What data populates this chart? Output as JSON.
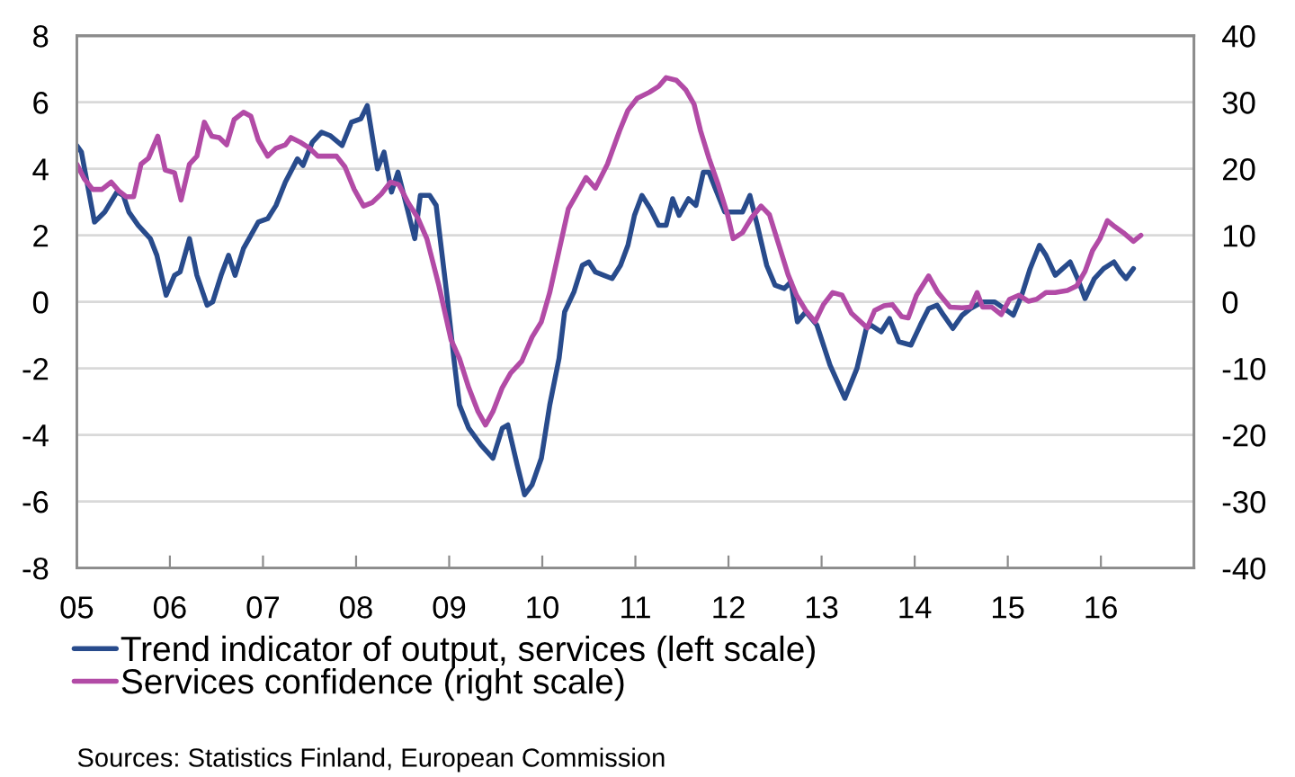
{
  "chart_data": {
    "type": "line",
    "xlim": [
      2005,
      2017
    ],
    "xticks": [
      {
        "value": 2005,
        "label": "05"
      },
      {
        "value": 2006,
        "label": "06"
      },
      {
        "value": 2007,
        "label": "07"
      },
      {
        "value": 2008,
        "label": "08"
      },
      {
        "value": 2009,
        "label": "09"
      },
      {
        "value": 2010,
        "label": "10"
      },
      {
        "value": 2011,
        "label": "11"
      },
      {
        "value": 2012,
        "label": "12"
      },
      {
        "value": 2013,
        "label": "13"
      },
      {
        "value": 2014,
        "label": "14"
      },
      {
        "value": 2015,
        "label": "15"
      },
      {
        "value": 2016,
        "label": "16"
      }
    ],
    "ylim": [
      -8,
      8
    ],
    "yticks": [
      -8,
      -6,
      -4,
      -2,
      0,
      2,
      4,
      6,
      8
    ],
    "y2lim": [
      -40,
      40
    ],
    "y2ticks": [
      -40,
      -30,
      -20,
      -10,
      0,
      10,
      20,
      30,
      40
    ],
    "grid": "y",
    "legend": "bottom left",
    "series": [
      {
        "name": "Trend indicator of output, services (left scale)",
        "color": "#284b8c",
        "axis": "y",
        "x": [
          2005.0,
          2005.05,
          2005.19,
          2005.3,
          2005.43,
          2005.5,
          2005.56,
          2005.66,
          2005.79,
          2005.86,
          2005.96,
          2006.05,
          2006.11,
          2006.21,
          2006.29,
          2006.4,
          2006.46,
          2006.55,
          2006.63,
          2006.7,
          2006.79,
          2006.85,
          2006.95,
          2007.05,
          2007.14,
          2007.24,
          2007.37,
          2007.43,
          2007.53,
          2007.63,
          2007.72,
          2007.85,
          2007.95,
          2008.05,
          2008.12,
          2008.23,
          2008.3,
          2008.38,
          2008.45,
          2008.55,
          2008.63,
          2008.69,
          2008.79,
          2008.86,
          2008.92,
          2008.98,
          2009.05,
          2009.11,
          2009.21,
          2009.34,
          2009.47,
          2009.57,
          2009.63,
          2009.73,
          2009.81,
          2009.89,
          2009.99,
          2010.08,
          2010.18,
          2010.24,
          2010.34,
          2010.43,
          2010.5,
          2010.57,
          2010.66,
          2010.75,
          2010.84,
          2010.92,
          2010.99,
          2011.07,
          2011.16,
          2011.25,
          2011.33,
          2011.4,
          2011.47,
          2011.57,
          2011.65,
          2011.73,
          2011.79,
          2011.86,
          2011.96,
          2012.05,
          2012.15,
          2012.23,
          2012.31,
          2012.41,
          2012.5,
          2012.6,
          2012.67,
          2012.74,
          2012.83,
          2012.95,
          2013.09,
          2013.25,
          2013.38,
          2013.48,
          2013.53,
          2013.64,
          2013.73,
          2013.83,
          2013.96,
          2014.06,
          2014.15,
          2014.24,
          2014.31,
          2014.41,
          2014.51,
          2014.6,
          2014.73,
          2014.86,
          2014.96,
          2015.06,
          2015.15,
          2015.24,
          2015.34,
          2015.41,
          2015.51,
          2015.59,
          2015.67,
          2015.75,
          2015.83,
          2015.93,
          2016.03,
          2016.14,
          2016.21,
          2016.27,
          2016.35
        ],
        "values": [
          4.7,
          4.5,
          2.4,
          2.7,
          3.3,
          3.2,
          2.7,
          2.3,
          1.9,
          1.4,
          0.2,
          0.8,
          0.9,
          1.9,
          0.8,
          -0.1,
          0.0,
          0.8,
          1.4,
          0.8,
          1.6,
          1.9,
          2.4,
          2.5,
          2.9,
          3.6,
          4.3,
          4.1,
          4.8,
          5.1,
          5.0,
          4.7,
          5.4,
          5.5,
          5.9,
          4.0,
          4.5,
          3.3,
          3.9,
          2.8,
          1.9,
          3.2,
          3.2,
          2.9,
          1.5,
          0.1,
          -1.7,
          -3.1,
          -3.8,
          -4.3,
          -4.7,
          -3.8,
          -3.7,
          -4.9,
          -5.8,
          -5.5,
          -4.7,
          -3.1,
          -1.7,
          -0.3,
          0.3,
          1.1,
          1.2,
          0.9,
          0.8,
          0.7,
          1.1,
          1.7,
          2.6,
          3.2,
          2.8,
          2.3,
          2.3,
          3.1,
          2.6,
          3.1,
          2.9,
          3.9,
          3.9,
          3.4,
          2.7,
          2.7,
          2.7,
          3.2,
          2.3,
          1.1,
          0.5,
          0.4,
          0.6,
          -0.6,
          -0.3,
          -0.7,
          -1.9,
          -2.9,
          -2.0,
          -0.8,
          -0.7,
          -0.9,
          -0.5,
          -1.2,
          -1.3,
          -0.7,
          -0.2,
          -0.1,
          -0.4,
          -0.8,
          -0.4,
          -0.2,
          0.0,
          0.0,
          -0.2,
          -0.4,
          0.2,
          1.0,
          1.7,
          1.4,
          0.8,
          1.0,
          1.2,
          0.7,
          0.1,
          0.7,
          1.0,
          1.2,
          0.9,
          0.7,
          1.0
        ]
      },
      {
        "name": "Services confidence (right scale)",
        "color": "#b24ba6",
        "axis": "y2",
        "x": [
          2005.0,
          2005.08,
          2005.17,
          2005.27,
          2005.37,
          2005.45,
          2005.53,
          2005.61,
          2005.69,
          2005.77,
          2005.87,
          2005.95,
          2006.05,
          2006.12,
          2006.21,
          2006.29,
          2006.37,
          2006.45,
          2006.53,
          2006.61,
          2006.69,
          2006.79,
          2006.87,
          2006.95,
          2007.05,
          2007.14,
          2007.24,
          2007.3,
          2007.4,
          2007.5,
          2007.59,
          2007.79,
          2007.88,
          2007.98,
          2008.08,
          2008.17,
          2008.27,
          2008.37,
          2008.46,
          2008.56,
          2008.66,
          2008.76,
          2008.89,
          2009.02,
          2009.11,
          2009.21,
          2009.31,
          2009.39,
          2009.47,
          2009.57,
          2009.66,
          2009.78,
          2009.89,
          2009.99,
          2010.08,
          2010.18,
          2010.28,
          2010.37,
          2010.47,
          2010.57,
          2010.7,
          2010.83,
          2010.92,
          2011.02,
          2011.15,
          2011.25,
          2011.33,
          2011.44,
          2011.54,
          2011.63,
          2011.7,
          2011.79,
          2011.89,
          2011.99,
          2012.05,
          2012.15,
          2012.25,
          2012.35,
          2012.44,
          2012.54,
          2012.64,
          2012.73,
          2012.83,
          2012.93,
          2013.02,
          2013.12,
          2013.22,
          2013.32,
          2013.49,
          2013.57,
          2013.67,
          2013.76,
          2013.86,
          2013.93,
          2014.02,
          2014.15,
          2014.25,
          2014.38,
          2014.51,
          2014.6,
          2014.67,
          2014.73,
          2014.83,
          2014.93,
          2015.02,
          2015.12,
          2015.22,
          2015.31,
          2015.41,
          2015.51,
          2015.64,
          2015.74,
          2015.83,
          2015.91,
          2015.99,
          2016.07,
          2016.15,
          2016.24,
          2016.35,
          2016.43
        ],
        "values": [
          20.7,
          18.5,
          16.9,
          16.9,
          18.0,
          16.7,
          15.8,
          15.8,
          20.7,
          21.6,
          24.9,
          19.8,
          19.4,
          15.3,
          20.7,
          21.9,
          27.0,
          24.9,
          24.7,
          23.6,
          27.4,
          28.5,
          27.9,
          24.3,
          21.9,
          23.1,
          23.6,
          24.7,
          24.0,
          23.1,
          21.9,
          21.9,
          20.3,
          16.9,
          14.4,
          14.9,
          16.2,
          18.0,
          17.6,
          14.9,
          12.7,
          9.5,
          2.4,
          -5.7,
          -8.5,
          -12.9,
          -16.5,
          -18.5,
          -16.5,
          -12.9,
          -10.7,
          -8.9,
          -5.3,
          -3.0,
          1.4,
          7.7,
          14.0,
          16.2,
          18.7,
          17.1,
          20.7,
          25.7,
          28.8,
          30.6,
          31.5,
          32.4,
          33.7,
          33.3,
          31.9,
          29.7,
          25.7,
          21.6,
          17.6,
          13.1,
          9.5,
          10.4,
          12.7,
          14.4,
          13.1,
          8.6,
          4.1,
          1.0,
          -1.3,
          -3.0,
          -0.4,
          1.4,
          1.0,
          -1.7,
          -3.9,
          -1.3,
          -0.6,
          -0.4,
          -2.2,
          -2.4,
          1.0,
          3.9,
          1.4,
          -0.8,
          -0.9,
          -0.8,
          1.4,
          -0.8,
          -0.8,
          -1.9,
          0.4,
          1.0,
          0.1,
          0.4,
          1.4,
          1.4,
          1.7,
          2.4,
          4.6,
          7.7,
          9.5,
          12.2,
          11.3,
          10.4,
          9.1,
          10.0
        ]
      }
    ],
    "annotations": [
      "Sources: Statistics Finland, European Commission"
    ]
  }
}
